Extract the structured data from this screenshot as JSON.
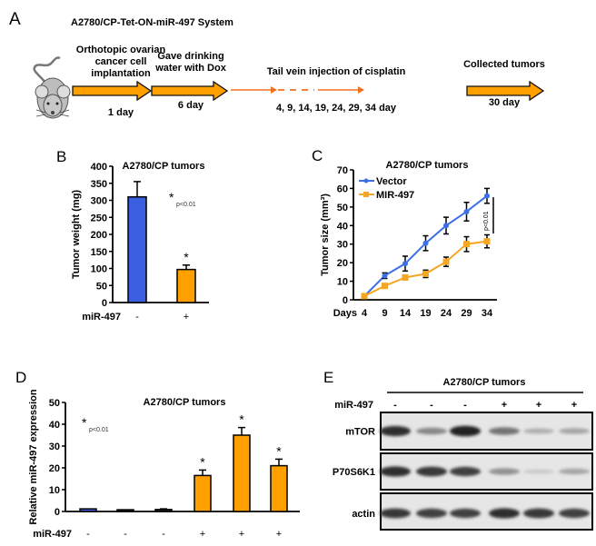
{
  "colors": {
    "blue": "#3a5fe0",
    "orange": "#ffa000",
    "line_blue": "#3b6fe8",
    "line_orange": "#f5a623",
    "arrow_orange": "#f07020"
  },
  "panel_a": {
    "letter": "A",
    "title": "A2780/CP-Tet-ON-miR-497 System",
    "steps": [
      {
        "lines": [
          "Orthotopic ovarian",
          "cancer cell",
          "implantation"
        ],
        "day": "1 day"
      },
      {
        "lines": [
          "Gave drinking",
          "water with Dox"
        ],
        "day": "6 day"
      },
      {
        "lines": [
          "Tail vein injection of cisplatin"
        ],
        "day": "4, 9, 14, 19, 24, 29, 34 day"
      },
      {
        "lines": [
          "Collected tumors"
        ],
        "day": "30 day"
      }
    ]
  },
  "chart_data": [
    {
      "panel": "B",
      "type": "bar",
      "title": "A2780/CP tumors",
      "ylabel": "Tumor weight (mg)",
      "xlabel": "miR-497",
      "categories": [
        "-",
        "+"
      ],
      "values": [
        310,
        97
      ],
      "errors": [
        45,
        13
      ],
      "significant": [
        false,
        true
      ],
      "annotation": "p<0.01",
      "ylim": [
        0,
        400
      ],
      "yticks": [
        0,
        50,
        100,
        150,
        200,
        250,
        300,
        350,
        400
      ]
    },
    {
      "panel": "C",
      "type": "line",
      "title": "A2780/CP tumors",
      "ylabel": "Tumor size (mm³)",
      "xlabel": "Days",
      "x": [
        4,
        9,
        14,
        19,
        24,
        29,
        34
      ],
      "series": [
        {
          "name": "Vector",
          "values": [
            2,
            13,
            19.5,
            30.5,
            40,
            47.5,
            56
          ],
          "errors": [
            0.5,
            1.5,
            4,
            4,
            4.5,
            5,
            4
          ]
        },
        {
          "name": "MIR-497",
          "values": [
            2,
            7.5,
            12,
            14,
            20.5,
            30,
            31.5
          ],
          "errors": [
            0.5,
            1,
            1,
            2,
            2.5,
            4,
            3.5
          ]
        }
      ],
      "annotation": "p<0.01",
      "legend": "top-left",
      "ylim": [
        0,
        70
      ],
      "yticks": [
        0,
        10,
        20,
        30,
        40,
        50,
        60,
        70
      ]
    },
    {
      "panel": "D",
      "type": "bar",
      "title": "A2780/CP tumors",
      "ylabel": "Relative miR-497 expression",
      "xlabel": "miR-497",
      "categories": [
        "-",
        "-",
        "-",
        "+",
        "+",
        "+"
      ],
      "values": [
        1.2,
        0.8,
        0.9,
        16.5,
        35,
        21
      ],
      "errors": [
        0,
        0,
        0.3,
        2.5,
        3.5,
        3
      ],
      "significant": [
        false,
        false,
        false,
        true,
        true,
        true
      ],
      "annotation": "p<0.01",
      "ylim": [
        0,
        50
      ],
      "yticks": [
        0,
        10,
        20,
        30,
        40,
        50
      ]
    }
  ],
  "panel_e": {
    "letter": "E",
    "title": "A2780/CP tumors",
    "row_label": "miR-497",
    "lanes": [
      "-",
      "-",
      "-",
      "+",
      "+",
      "+"
    ],
    "blots": [
      {
        "name": "mTOR",
        "intensity": [
          0.9,
          0.45,
          0.95,
          0.55,
          0.25,
          0.3
        ]
      },
      {
        "name": "P70S6K1",
        "intensity": [
          0.9,
          0.85,
          0.8,
          0.4,
          0.12,
          0.3
        ]
      },
      {
        "name": "actin",
        "intensity": [
          0.85,
          0.8,
          0.8,
          0.9,
          0.85,
          0.8
        ]
      }
    ]
  }
}
